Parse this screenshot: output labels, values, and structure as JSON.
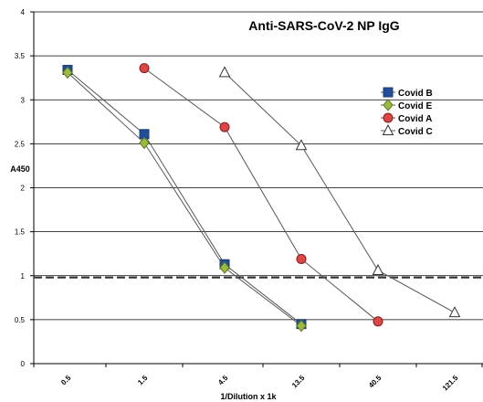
{
  "chart_data": {
    "type": "line",
    "title": "Anti-SARS-CoV-2 NP IgG",
    "xlabel": "1/Dilution x 1k",
    "ylabel": "A450",
    "categories": [
      "0.5",
      "1.5",
      "4.5",
      "13.5",
      "40.5",
      "121.5"
    ],
    "ylim": [
      0,
      4
    ],
    "yticks": [
      "0",
      "0.5",
      "1",
      "1.5",
      "2",
      "2.5",
      "3",
      "3.5",
      "4"
    ],
    "grid": "horizontal",
    "legend_position": "right",
    "cutoff": 0.98,
    "series": [
      {
        "name": "Covid B",
        "marker": "square",
        "color": "#1f3b73",
        "fill": "#1f4e9a",
        "values": [
          3.34,
          2.61,
          1.13,
          0.45,
          null,
          null
        ]
      },
      {
        "name": "Covid E",
        "marker": "diamond",
        "color": "#5f7a1e",
        "fill": "#9bbb3a",
        "values": [
          3.31,
          2.51,
          1.09,
          0.43,
          null,
          null
        ]
      },
      {
        "name": "Covid A",
        "marker": "circle",
        "color": "#8b1a1a",
        "fill": "#e04545",
        "values": [
          null,
          3.36,
          2.69,
          1.19,
          0.48,
          null
        ]
      },
      {
        "name": "Covid C",
        "marker": "triangle",
        "color": "#333333",
        "fill": "#ffffff",
        "values": [
          null,
          null,
          3.31,
          2.48,
          1.06,
          0.58
        ]
      }
    ]
  }
}
